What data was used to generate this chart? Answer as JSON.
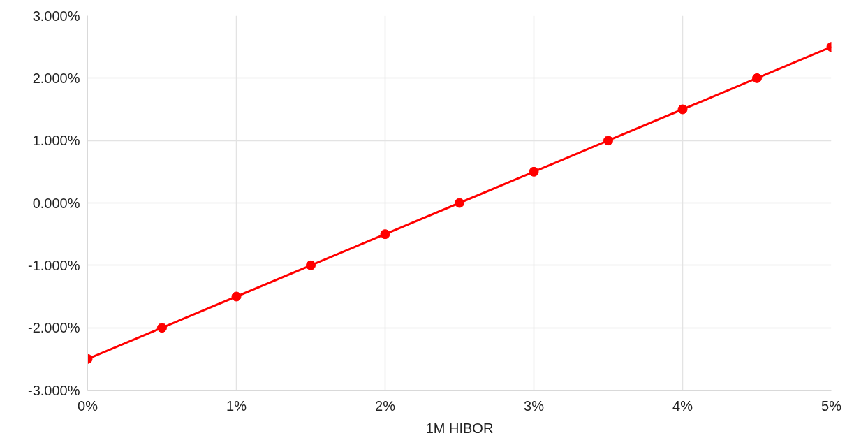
{
  "chart_data": {
    "type": "line",
    "xlabel": "1M HIBOR",
    "x": [
      0,
      0.5,
      1,
      1.5,
      2,
      2.5,
      3,
      3.5,
      4,
      4.5,
      5
    ],
    "series": [
      {
        "color": "#ff0000",
        "values": [
          -2.5,
          -2,
          -1.5,
          -1,
          -0.5,
          0,
          0.5,
          1,
          1.5,
          2,
          2.5
        ]
      }
    ],
    "xlim": [
      0,
      5
    ],
    "ylim": [
      -3,
      3
    ],
    "xticks": [
      {
        "value": 0,
        "label": "0%"
      },
      {
        "value": 1,
        "label": "1%"
      },
      {
        "value": 2,
        "label": "2%"
      },
      {
        "value": 3,
        "label": "3%"
      },
      {
        "value": 4,
        "label": "4%"
      },
      {
        "value": 5,
        "label": "5%"
      }
    ],
    "yticks": [
      {
        "value": -3,
        "label": "-3.000%"
      },
      {
        "value": -2,
        "label": "-2.000%"
      },
      {
        "value": -1,
        "label": "-1.000%"
      },
      {
        "value": 0,
        "label": "0.000%"
      },
      {
        "value": 1,
        "label": "1.000%"
      },
      {
        "value": 2,
        "label": "2.000%"
      },
      {
        "value": 3,
        "label": "3.000%"
      }
    ],
    "grid": true,
    "marker": "circle",
    "line_style": "solid"
  }
}
